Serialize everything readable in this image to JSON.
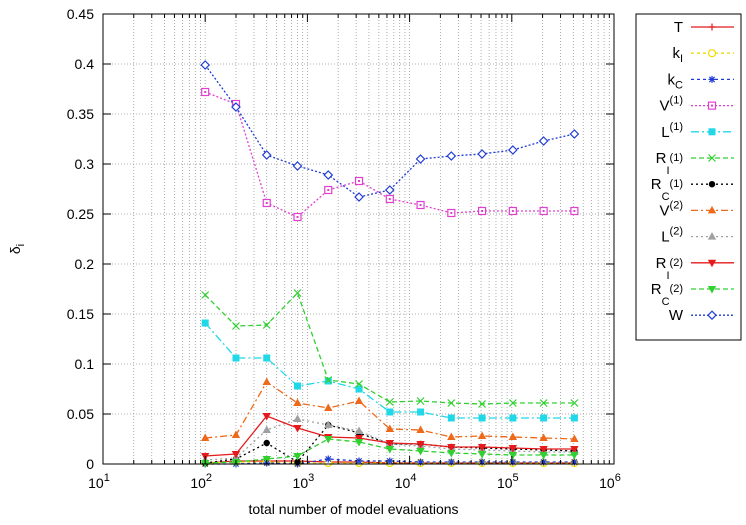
{
  "chart_data": {
    "type": "line",
    "xlabel": "total number of model evaluations",
    "ylabel": "δi",
    "xscale": "log",
    "xlim": [
      10,
      1000000
    ],
    "ylim": [
      0,
      0.45
    ],
    "grid": true,
    "legend": "right-outside",
    "x_ticks": [
      {
        "value": 10,
        "mant": "10",
        "exp": "1"
      },
      {
        "value": 100,
        "mant": "10",
        "exp": "2"
      },
      {
        "value": 1000,
        "mant": "10",
        "exp": "3"
      },
      {
        "value": 10000,
        "mant": "10",
        "exp": "4"
      },
      {
        "value": 100000,
        "mant": "10",
        "exp": "5"
      },
      {
        "value": 1000000,
        "mant": "10",
        "exp": "6"
      }
    ],
    "y_ticks": [
      {
        "value": 0,
        "label": "0"
      },
      {
        "value": 0.05,
        "label": "0.05"
      },
      {
        "value": 0.1,
        "label": "0.1"
      },
      {
        "value": 0.15,
        "label": "0.15"
      },
      {
        "value": 0.2,
        "label": "0.2"
      },
      {
        "value": 0.25,
        "label": "0.25"
      },
      {
        "value": 0.3,
        "label": "0.3"
      },
      {
        "value": 0.35,
        "label": "0.35"
      },
      {
        "value": 0.4,
        "label": "0.4"
      },
      {
        "value": 0.45,
        "label": "0.45"
      }
    ],
    "x": [
      100,
      200,
      400,
      800,
      1600,
      3200,
      6400,
      12800,
      25600,
      51200,
      102400,
      204800,
      409600
    ],
    "series": [
      {
        "name": "T",
        "main": "T",
        "sub": "",
        "sup": "",
        "color": "#e41a1c",
        "dash": "",
        "marker": "plus",
        "values": [
          0.001,
          0.003,
          0.003,
          0.003,
          0.002,
          0.002,
          0.001,
          0.001,
          0.001,
          0.001,
          0.001,
          0.001,
          0.001
        ]
      },
      {
        "name": "kI",
        "main": "k",
        "sub": "I",
        "sup": "",
        "color": "#f0dc00",
        "dash": "3,3",
        "marker": "circle-open",
        "values": [
          0.001,
          0.002,
          0.002,
          0.001,
          0.001,
          0.001,
          0.001,
          0.001,
          0.001,
          0.001,
          0.001,
          0.001,
          0.001
        ]
      },
      {
        "name": "kC",
        "main": "k",
        "sub": "C",
        "sup": "",
        "color": "#1f3bd6",
        "dash": "3,3",
        "marker": "asterisk",
        "values": [
          0.0,
          0.0,
          0.001,
          0.0,
          0.005,
          0.003,
          0.003,
          0.002,
          0.002,
          0.002,
          0.002,
          0.002,
          0.002
        ]
      },
      {
        "name": "V(1)",
        "main": "V",
        "sub": "",
        "sup": "(1)",
        "color": "#e040d0",
        "dash": "2,2",
        "marker": "square-open",
        "values": [
          0.372,
          0.36,
          0.261,
          0.247,
          0.274,
          0.283,
          0.265,
          0.259,
          0.251,
          0.253,
          0.253,
          0.253,
          0.253
        ]
      },
      {
        "name": "L(1)",
        "main": "L",
        "sub": "",
        "sup": "(1)",
        "color": "#20d8e8",
        "dash": "8,3,2,3",
        "marker": "square-filled",
        "values": [
          0.141,
          0.106,
          0.106,
          0.078,
          0.083,
          0.075,
          0.052,
          0.052,
          0.046,
          0.046,
          0.046,
          0.046,
          0.046
        ]
      },
      {
        "name": "RI(1)",
        "main": "R",
        "sub": "I",
        "sup": "(1)",
        "color": "#30d030",
        "dash": "5,3",
        "marker": "x",
        "values": [
          0.169,
          0.138,
          0.139,
          0.171,
          0.084,
          0.08,
          0.062,
          0.063,
          0.061,
          0.06,
          0.061,
          0.061,
          0.061
        ]
      },
      {
        "name": "RC(1)",
        "main": "R",
        "sub": "C",
        "sup": "(1)",
        "color": "#000000",
        "dash": "2,3",
        "marker": "dot",
        "values": [
          0.001,
          0.005,
          0.021,
          0.002,
          0.039,
          0.031,
          0.02,
          0.02,
          0.017,
          0.016,
          0.015,
          0.014,
          0.013
        ]
      },
      {
        "name": "V(2)",
        "main": "V",
        "sub": "",
        "sup": "(2)",
        "color": "#ee6a1a",
        "dash": "7,3,2,3",
        "marker": "triangle-up",
        "values": [
          0.026,
          0.029,
          0.082,
          0.061,
          0.056,
          0.063,
          0.035,
          0.034,
          0.027,
          0.028,
          0.027,
          0.026,
          0.025
        ]
      },
      {
        "name": "L(2)",
        "main": "L",
        "sub": "",
        "sup": "(2)",
        "color": "#a0a0a0",
        "dash": "2,3",
        "marker": "triangle-up",
        "values": [
          0.004,
          0.006,
          0.034,
          0.045,
          0.039,
          0.033,
          0.02,
          0.018,
          0.015,
          0.014,
          0.013,
          0.012,
          0.012
        ]
      },
      {
        "name": "RI(2)",
        "main": "R",
        "sub": "I",
        "sup": "(2)",
        "color": "#e41a1c",
        "dash": "",
        "marker": "triangle-down",
        "values": [
          0.008,
          0.01,
          0.048,
          0.036,
          0.027,
          0.026,
          0.021,
          0.02,
          0.017,
          0.017,
          0.016,
          0.015,
          0.015
        ]
      },
      {
        "name": "RC(2)",
        "main": "R",
        "sub": "C",
        "sup": "(2)",
        "color": "#30d030",
        "dash": "5,3",
        "marker": "triangle-down",
        "values": [
          0.001,
          0.002,
          0.005,
          0.008,
          0.025,
          0.022,
          0.015,
          0.013,
          0.011,
          0.01,
          0.009,
          0.009,
          0.009
        ]
      },
      {
        "name": "W",
        "main": "W",
        "sub": "",
        "sup": "",
        "color": "#1f3bd6",
        "dash": "2,2",
        "marker": "diamond-open",
        "values": [
          0.399,
          0.357,
          0.309,
          0.298,
          0.289,
          0.267,
          0.274,
          0.305,
          0.308,
          0.31,
          0.314,
          0.323,
          0.33
        ]
      }
    ]
  }
}
